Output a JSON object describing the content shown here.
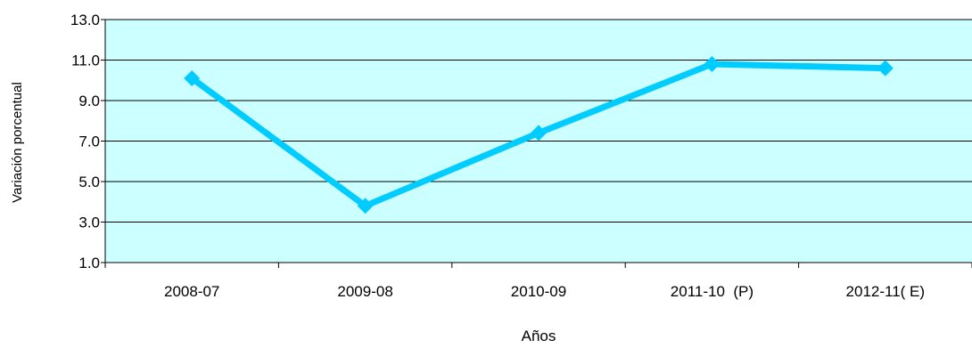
{
  "chart_data": {
    "type": "line",
    "title": "",
    "xlabel": "Años",
    "ylabel": "Variación porcentual",
    "categories": [
      "2008-07",
      "2009-08",
      "2010-09",
      "2011-10  (P)",
      "2012-11( E)"
    ],
    "series": [
      {
        "values": [
          10.1,
          3.8,
          7.4,
          10.8,
          10.6
        ]
      }
    ],
    "ylim": [
      1.0,
      13.0
    ],
    "yticks": [
      "1.0",
      "3.0",
      "5.0",
      "7.0",
      "9.0",
      "11.0",
      "13.0"
    ],
    "grid": true,
    "legend": "none",
    "colors": {
      "plot_background": "#ccffff",
      "line": "#00ccff",
      "grid": "#000000"
    }
  }
}
